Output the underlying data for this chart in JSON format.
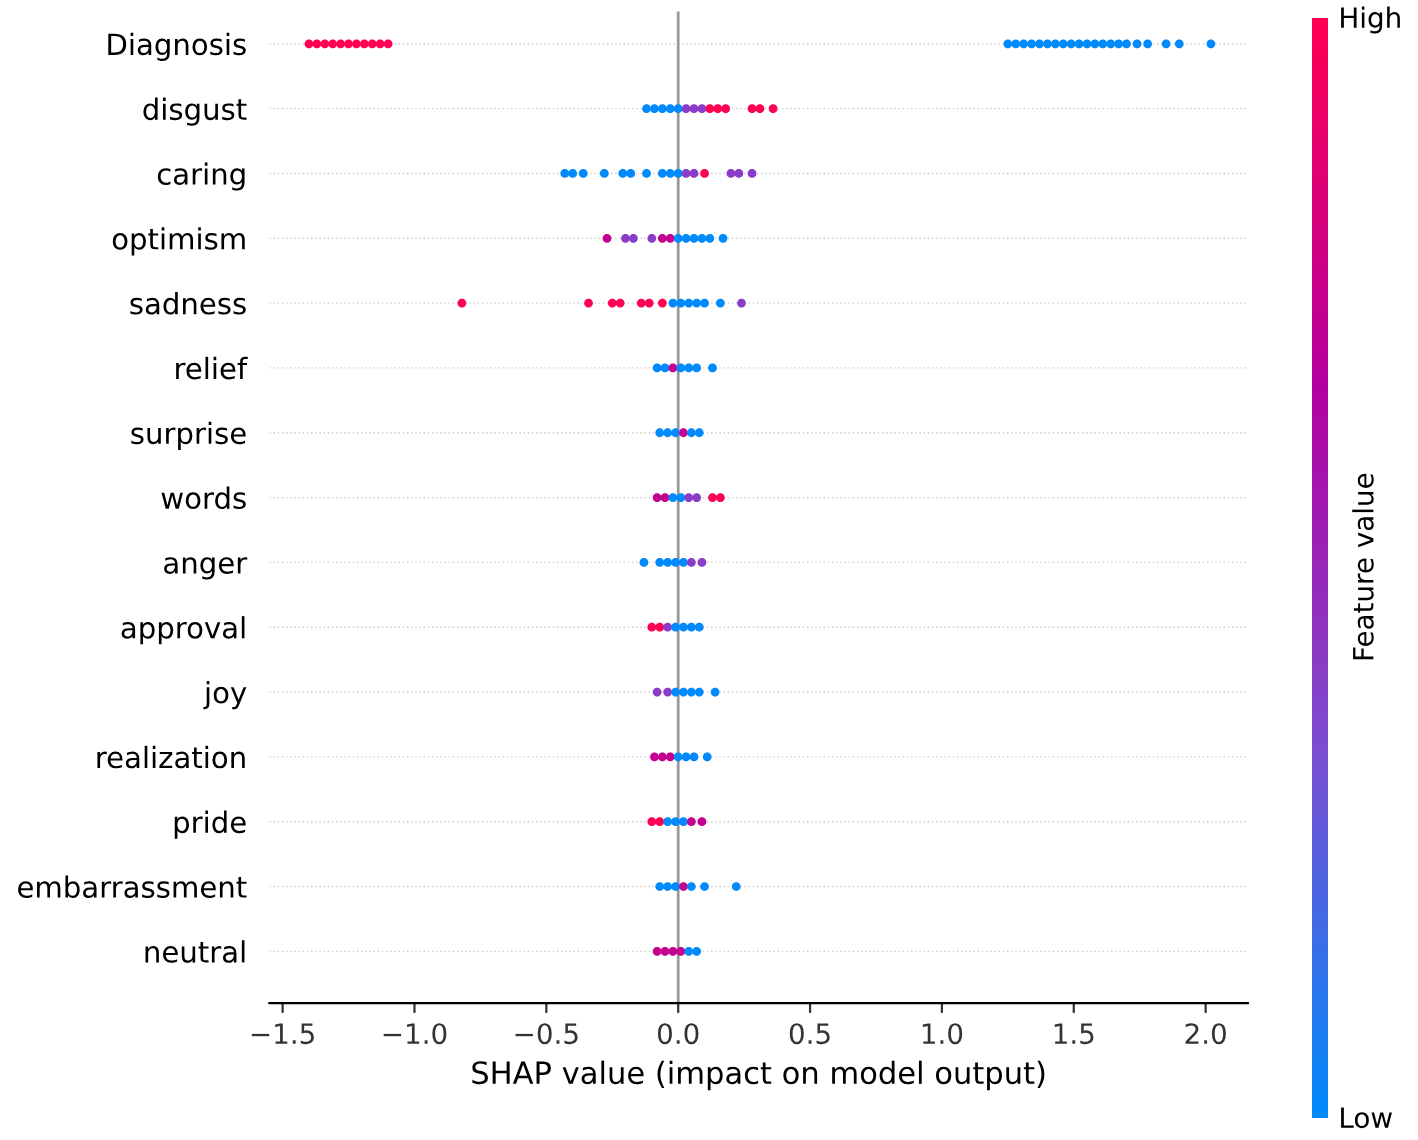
{
  "chart_data": {
    "type": "scatter",
    "orientation": "horizontal",
    "xlabel": "SHAP value (impact on model output)",
    "clabel": "Feature value",
    "categories": [
      "Diagnosis",
      "disgust",
      "caring",
      "optimism",
      "sadness",
      "relief",
      "surprise",
      "words",
      "anger",
      "approval",
      "joy",
      "realization",
      "pride",
      "embarrassment",
      "neutral"
    ],
    "series": [
      {
        "x": [
          "Diagnosis",
          "Diagnosis",
          "Diagnosis",
          "Diagnosis",
          "Diagnosis",
          "Diagnosis",
          "Diagnosis",
          "Diagnosis",
          "Diagnosis",
          "Diagnosis",
          "Diagnosis",
          "Diagnosis",
          "Diagnosis",
          "Diagnosis",
          "Diagnosis",
          "Diagnosis",
          "Diagnosis",
          "Diagnosis",
          "Diagnosis",
          "Diagnosis",
          "Diagnosis",
          "Diagnosis",
          "Diagnosis",
          "Diagnosis",
          "Diagnosis",
          "Diagnosis",
          "Diagnosis",
          "Diagnosis",
          "Diagnosis",
          "Diagnosis",
          "Diagnosis",
          "Diagnosis"
        ],
        "values": [
          -1.4,
          -1.37,
          -1.34,
          -1.31,
          -1.28,
          -1.25,
          -1.22,
          -1.19,
          -1.16,
          -1.13,
          -1.1,
          1.25,
          1.28,
          1.31,
          1.34,
          1.37,
          1.4,
          1.43,
          1.46,
          1.49,
          1.52,
          1.55,
          1.58,
          1.61,
          1.64,
          1.67,
          1.7,
          1.74,
          1.78,
          1.85,
          1.9,
          2.02
        ],
        "colors": [
          "#ff0052",
          "#ff0052",
          "#ff0052",
          "#ff0052",
          "#ff0052",
          "#ff0052",
          "#ff0052",
          "#ff0052",
          "#ff0052",
          "#ff0052",
          "#ff0052",
          "#008afb",
          "#008afb",
          "#008afb",
          "#008afb",
          "#008afb",
          "#008afb",
          "#008afb",
          "#008afb",
          "#008afb",
          "#008afb",
          "#008afb",
          "#008afb",
          "#008afb",
          "#008afb",
          "#008afb",
          "#008afb",
          "#008afb",
          "#008afb",
          "#008afb",
          "#008afb",
          "#008afb"
        ]
      },
      {
        "x": [
          "disgust",
          "disgust",
          "disgust",
          "disgust",
          "disgust",
          "disgust",
          "disgust",
          "disgust",
          "disgust",
          "disgust",
          "disgust",
          "disgust",
          "disgust",
          "disgust"
        ],
        "values": [
          -0.12,
          -0.09,
          -0.06,
          -0.03,
          0,
          0.03,
          0.06,
          0.09,
          0.12,
          0.15,
          0.18,
          0.28,
          0.31,
          0.36
        ],
        "colors": [
          "#008afb",
          "#008afb",
          "#008afb",
          "#008afb",
          "#008afb",
          "#8a3cc8",
          "#8a3cc8",
          "#8a3cc8",
          "#ff0052",
          "#ff0052",
          "#ff0052",
          "#ff0052",
          "#ff0052",
          "#ff0052"
        ]
      },
      {
        "x": [
          "caring",
          "caring",
          "caring",
          "caring",
          "caring",
          "caring",
          "caring",
          "caring",
          "caring",
          "caring",
          "caring",
          "caring",
          "caring",
          "caring",
          "caring",
          "caring"
        ],
        "values": [
          -0.43,
          -0.4,
          -0.36,
          -0.28,
          -0.21,
          -0.18,
          -0.12,
          -0.06,
          -0.03,
          0,
          0.03,
          0.06,
          0.1,
          0.2,
          0.23,
          0.28
        ],
        "colors": [
          "#008afb",
          "#008afb",
          "#008afb",
          "#008afb",
          "#008afb",
          "#008afb",
          "#008afb",
          "#008afb",
          "#008afb",
          "#008afb",
          "#8a3cc8",
          "#8a3cc8",
          "#ff0052",
          "#8a3cc8",
          "#8a3cc8",
          "#8a3cc8"
        ]
      },
      {
        "x": [
          "optimism",
          "optimism",
          "optimism",
          "optimism",
          "optimism",
          "optimism",
          "optimism",
          "optimism",
          "optimism",
          "optimism",
          "optimism",
          "optimism"
        ],
        "values": [
          -0.27,
          -0.2,
          -0.17,
          -0.1,
          -0.06,
          -0.03,
          0,
          0.03,
          0.06,
          0.09,
          0.12,
          0.17
        ],
        "colors": [
          "#c4008f",
          "#8a3cc8",
          "#8a3cc8",
          "#8a3cc8",
          "#c4008f",
          "#c4008f",
          "#008afb",
          "#008afb",
          "#008afb",
          "#008afb",
          "#008afb",
          "#008afb"
        ]
      },
      {
        "x": [
          "sadness",
          "sadness",
          "sadness",
          "sadness",
          "sadness",
          "sadness",
          "sadness",
          "sadness",
          "sadness",
          "sadness",
          "sadness",
          "sadness",
          "sadness",
          "sadness"
        ],
        "values": [
          -0.82,
          -0.34,
          -0.25,
          -0.22,
          -0.14,
          -0.11,
          -0.06,
          -0.02,
          0.01,
          0.04,
          0.07,
          0.1,
          0.16,
          0.24
        ],
        "colors": [
          "#ff0052",
          "#ff0052",
          "#ff0052",
          "#ff0052",
          "#ff0052",
          "#ff0052",
          "#ff0052",
          "#008afb",
          "#008afb",
          "#008afb",
          "#008afb",
          "#008afb",
          "#008afb",
          "#8a3cc8"
        ]
      },
      {
        "x": [
          "relief",
          "relief",
          "relief",
          "relief",
          "relief",
          "relief",
          "relief"
        ],
        "values": [
          -0.08,
          -0.05,
          -0.02,
          0.01,
          0.04,
          0.07,
          0.13
        ],
        "colors": [
          "#008afb",
          "#008afb",
          "#c4008f",
          "#008afb",
          "#008afb",
          "#008afb",
          "#008afb"
        ]
      },
      {
        "x": [
          "surprise",
          "surprise",
          "surprise",
          "surprise",
          "surprise",
          "surprise"
        ],
        "values": [
          -0.07,
          -0.04,
          -0.01,
          0.02,
          0.05,
          0.08
        ],
        "colors": [
          "#008afb",
          "#008afb",
          "#008afb",
          "#c4008f",
          "#008afb",
          "#008afb"
        ]
      },
      {
        "x": [
          "words",
          "words",
          "words",
          "words",
          "words",
          "words",
          "words",
          "words"
        ],
        "values": [
          -0.08,
          -0.05,
          -0.02,
          0.01,
          0.04,
          0.07,
          0.13,
          0.16
        ],
        "colors": [
          "#c4008f",
          "#c4008f",
          "#008afb",
          "#008afb",
          "#8a3cc8",
          "#8a3cc8",
          "#ff0052",
          "#ff0052"
        ]
      },
      {
        "x": [
          "anger",
          "anger",
          "anger",
          "anger",
          "anger",
          "anger",
          "anger"
        ],
        "values": [
          -0.13,
          -0.07,
          -0.04,
          -0.01,
          0.02,
          0.05,
          0.09
        ],
        "colors": [
          "#008afb",
          "#008afb",
          "#008afb",
          "#008afb",
          "#008afb",
          "#8a3cc8",
          "#8a3cc8"
        ]
      },
      {
        "x": [
          "approval",
          "approval",
          "approval",
          "approval",
          "approval",
          "approval",
          "approval"
        ],
        "values": [
          -0.1,
          -0.07,
          -0.04,
          -0.01,
          0.02,
          0.05,
          0.08
        ],
        "colors": [
          "#ff0052",
          "#ff0052",
          "#8a3cc8",
          "#008afb",
          "#008afb",
          "#008afb",
          "#008afb"
        ]
      },
      {
        "x": [
          "joy",
          "joy",
          "joy",
          "joy",
          "joy",
          "joy",
          "joy"
        ],
        "values": [
          -0.08,
          -0.04,
          -0.01,
          0.02,
          0.05,
          0.08,
          0.14
        ],
        "colors": [
          "#8a3cc8",
          "#8a3cc8",
          "#008afb",
          "#008afb",
          "#008afb",
          "#008afb",
          "#008afb"
        ]
      },
      {
        "x": [
          "realization",
          "realization",
          "realization",
          "realization",
          "realization",
          "realization",
          "realization"
        ],
        "values": [
          -0.09,
          -0.06,
          -0.03,
          0,
          0.03,
          0.06,
          0.11
        ],
        "colors": [
          "#c4008f",
          "#c4008f",
          "#c4008f",
          "#008afb",
          "#008afb",
          "#008afb",
          "#008afb"
        ]
      },
      {
        "x": [
          "pride",
          "pride",
          "pride",
          "pride",
          "pride",
          "pride",
          "pride"
        ],
        "values": [
          -0.1,
          -0.07,
          -0.04,
          -0.01,
          0.02,
          0.05,
          0.09
        ],
        "colors": [
          "#ff0052",
          "#ff0052",
          "#008afb",
          "#008afb",
          "#008afb",
          "#c4008f",
          "#c4008f"
        ]
      },
      {
        "x": [
          "embarrassment",
          "embarrassment",
          "embarrassment",
          "embarrassment",
          "embarrassment",
          "embarrassment",
          "embarrassment"
        ],
        "values": [
          -0.07,
          -0.04,
          -0.01,
          0.02,
          0.05,
          0.1,
          0.22
        ],
        "colors": [
          "#008afb",
          "#008afb",
          "#008afb",
          "#c4008f",
          "#008afb",
          "#008afb",
          "#008afb"
        ]
      },
      {
        "x": [
          "neutral",
          "neutral",
          "neutral",
          "neutral",
          "neutral",
          "neutral"
        ],
        "values": [
          -0.08,
          -0.05,
          -0.02,
          0.01,
          0.04,
          0.07
        ],
        "colors": [
          "#c4008f",
          "#c4008f",
          "#c4008f",
          "#c4008f",
          "#008afb",
          "#008afb"
        ]
      }
    ],
    "xlim": [
      -1.55,
      2.16
    ],
    "xticks": [
      {
        "value": -1.5,
        "label": "−1.5"
      },
      {
        "value": -1.0,
        "label": "−1.0"
      },
      {
        "value": -0.5,
        "label": "−0.5"
      },
      {
        "value": 0.0,
        "label": "0.0"
      },
      {
        "value": 0.5,
        "label": "0.5"
      },
      {
        "value": 1.0,
        "label": "1.0"
      },
      {
        "value": 1.5,
        "label": "1.5"
      },
      {
        "value": 2.0,
        "label": "2.0"
      }
    ],
    "clim": [
      0,
      1
    ],
    "cticks": [
      {
        "value": 0,
        "label": "Low"
      },
      {
        "value": 1,
        "label": "High"
      }
    ],
    "ref_lines": [
      {
        "axis": "x",
        "value": 0,
        "color": "#999999"
      }
    ],
    "grid": "y",
    "marker": "circle"
  }
}
